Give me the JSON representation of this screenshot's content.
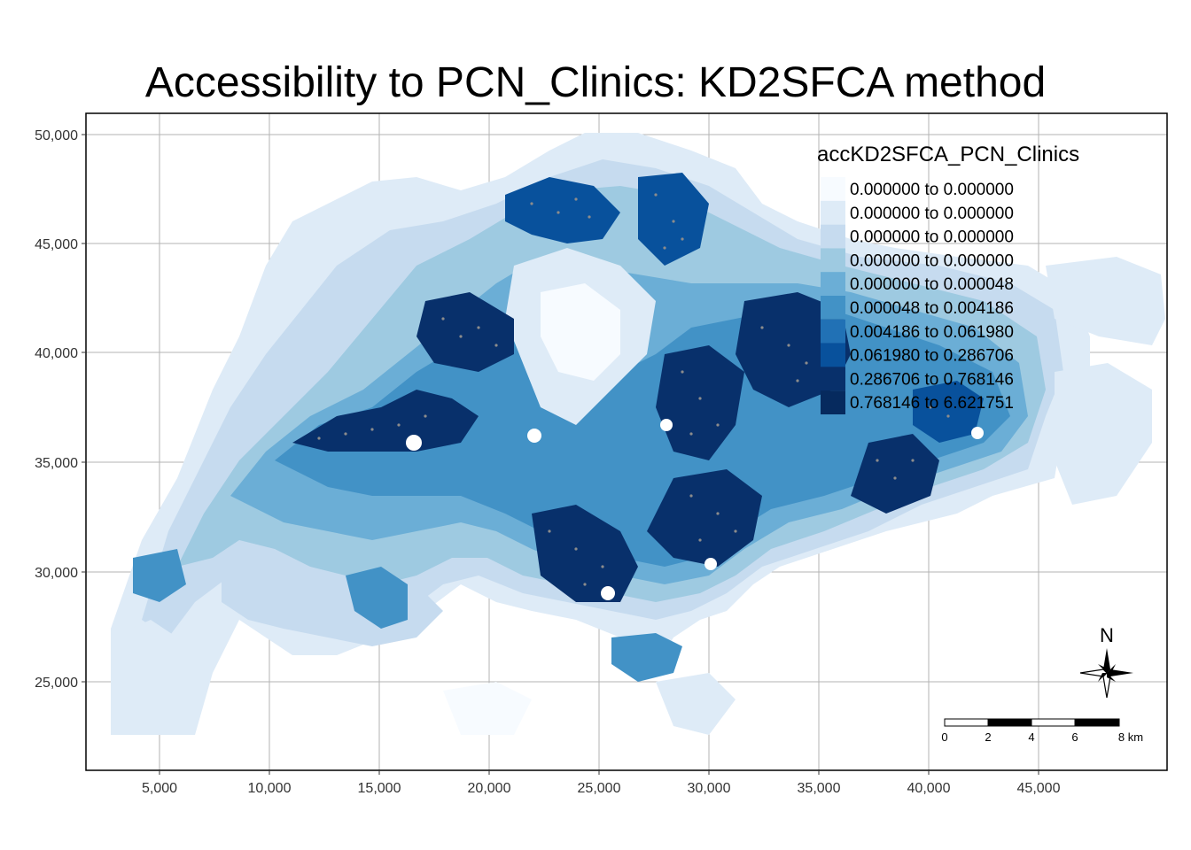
{
  "title": "Accessibility to PCN_Clinics: KD2SFCA method",
  "axes": {
    "x_ticks": [
      "5,000",
      "10,000",
      "15,000",
      "20,000",
      "25,000",
      "30,000",
      "35,000",
      "40,000",
      "45,000"
    ],
    "y_ticks": [
      "50,000",
      "45,000",
      "40,000",
      "35,000",
      "30,000",
      "25,000"
    ]
  },
  "legend": {
    "title": "accKD2SFCA_PCN_Clinics",
    "entries": [
      {
        "label": "0.000000 to 0.000000",
        "color": "#f7fbff"
      },
      {
        "label": "0.000000 to 0.000000",
        "color": "#deebf7"
      },
      {
        "label": "0.000000 to 0.000000",
        "color": "#c6dbef"
      },
      {
        "label": "0.000000 to 0.000000",
        "color": "#9ecae1"
      },
      {
        "label": "0.000000 to 0.000048",
        "color": "#6baed6"
      },
      {
        "label": "0.000048 to 0.004186",
        "color": "#4292c6"
      },
      {
        "label": "0.004186 to 0.061980",
        "color": "#2171b5"
      },
      {
        "label": "0.061980 to 0.286706",
        "color": "#08519c"
      },
      {
        "label": "0.286706 to 0.768146",
        "color": "#08306b"
      },
      {
        "label": "0.768146 to 6.621751",
        "color": "#062a5e"
      }
    ]
  },
  "north_arrow": {
    "label": "N"
  },
  "scale_bar": {
    "labels": [
      "0",
      "2",
      "4",
      "6",
      "8 km"
    ]
  },
  "chart_data": {
    "type": "heatmap",
    "title": "Accessibility to PCN_Clinics: KD2SFCA method",
    "xlim": [
      2500,
      51000
    ],
    "ylim": [
      21000,
      51000
    ],
    "grid": true,
    "legend_position": "top-right",
    "legend_title": "accKD2SFCA_PCN_Clinics"
  }
}
